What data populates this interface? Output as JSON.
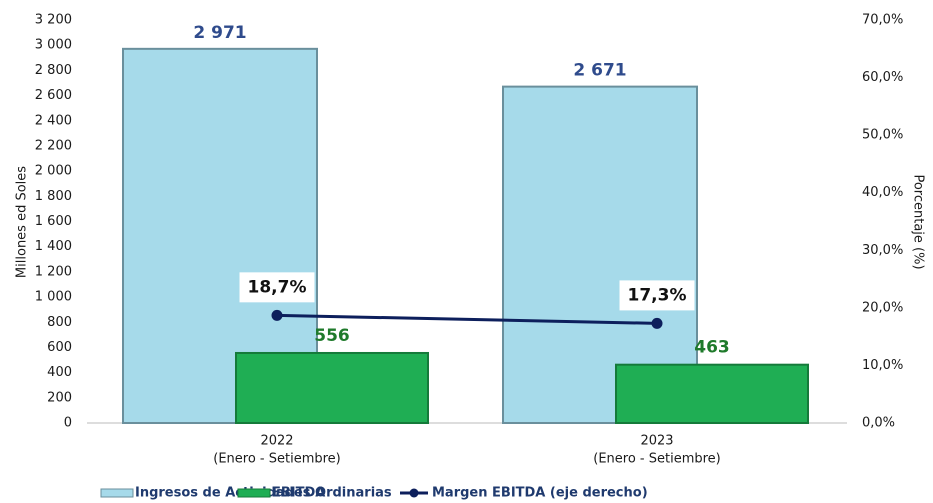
{
  "chart_data": {
    "type": "bar",
    "categories": [
      "2022",
      "2023"
    ],
    "category_sublabels": [
      "(Enero -  Setiembre)",
      "(Enero -  Setiembre)"
    ],
    "y_label": "Millones ed Soles",
    "y2_label": "Porcentaje (%)",
    "ylim": [
      0,
      3200
    ],
    "yticks": [
      0,
      200,
      400,
      600,
      800,
      {
        "value": 1000,
        "label": "1 000"
      },
      {
        "value": 1200,
        "label": "1 200"
      },
      {
        "value": 1400,
        "label": "1 400"
      },
      {
        "value": 1600,
        "label": "1 600"
      },
      {
        "value": 1800,
        "label": "1 800"
      },
      {
        "value": 2000,
        "label": "2 000"
      },
      {
        "value": 2200,
        "label": "2 200"
      },
      {
        "value": 2400,
        "label": "2 400"
      },
      {
        "value": 2600,
        "label": "2 600"
      },
      {
        "value": 2800,
        "label": "2 800"
      },
      {
        "value": 3000,
        "label": "3 000"
      },
      {
        "value": 3200,
        "label": "3 200"
      }
    ],
    "y2lim": [
      0,
      70
    ],
    "y2ticks": [
      {
        "value": 0,
        "label": "0,0%"
      },
      {
        "value": 10,
        "label": "10,0%"
      },
      {
        "value": 20,
        "label": "20,0%"
      },
      {
        "value": 30,
        "label": "30,0%"
      },
      {
        "value": 40,
        "label": "40,0%"
      },
      {
        "value": 50,
        "label": "50,0%"
      },
      {
        "value": 60,
        "label": "60,0%"
      },
      {
        "value": 70,
        "label": "70,0%"
      }
    ],
    "legend": "bottom",
    "series": [
      {
        "name": "Ingresos de Actividades Ordinarias",
        "type": "bar",
        "color": "#a6daea",
        "label_color": "#2f4b8c",
        "values": [
          2971,
          2671
        ],
        "value_labels": [
          "2 971",
          "2 671"
        ]
      },
      {
        "name": "EBITDA",
        "type": "bar",
        "color": "#1fae54",
        "label_color": "#1f7a2b",
        "values": [
          556,
          463
        ]
      },
      {
        "name": "Margen EBITDA (eje derecho)",
        "type": "line",
        "axis": "y2",
        "color": "#0d1f5c",
        "label_color": "#111111",
        "values": [
          18.7,
          17.3
        ],
        "value_labels": [
          "18,7%",
          "17,3%"
        ]
      }
    ]
  }
}
